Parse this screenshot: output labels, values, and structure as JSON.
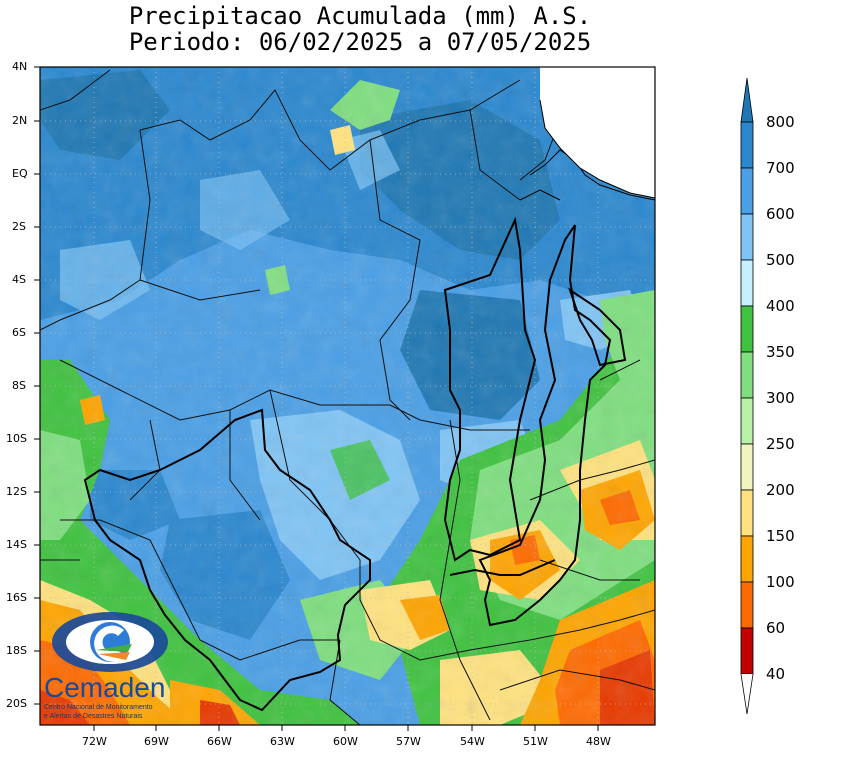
{
  "title": {
    "line1": "Precipitacao Acumulada (mm) A.S.",
    "line2": "Periodo: 06/02/2025 a 07/05/2025"
  },
  "lat_labels": [
    "4N",
    "2N",
    "EQ",
    "2S",
    "4S",
    "6S",
    "8S",
    "10S",
    "12S",
    "14S",
    "16S",
    "18S",
    "20S"
  ],
  "lon_labels": [
    "72W",
    "69W",
    "66W",
    "63W",
    "60W",
    "57W",
    "54W",
    "51W",
    "48W"
  ],
  "colorbar": {
    "unit": "mm",
    "labels": [
      "800",
      "700",
      "600",
      "500",
      "400",
      "350",
      "300",
      "250",
      "200",
      "150",
      "100",
      "60",
      "40"
    ],
    "colors": [
      "#1f78b4",
      "#2b88cf",
      "#4a9fe6",
      "#7fc4f5",
      "#c6f0ff",
      "#3fc23f",
      "#7fdf7f",
      "#b8f0a6",
      "#f0f5c0",
      "#ffe27f",
      "#ffa500",
      "#ff6a00",
      "#e83a00",
      "#c40000"
    ]
  },
  "logo": {
    "name": "Cemaden",
    "subtitle_line1": "Centro Nacional de Monitoramento",
    "subtitle_line2": "e Alertas de Desastres Naturais"
  }
}
